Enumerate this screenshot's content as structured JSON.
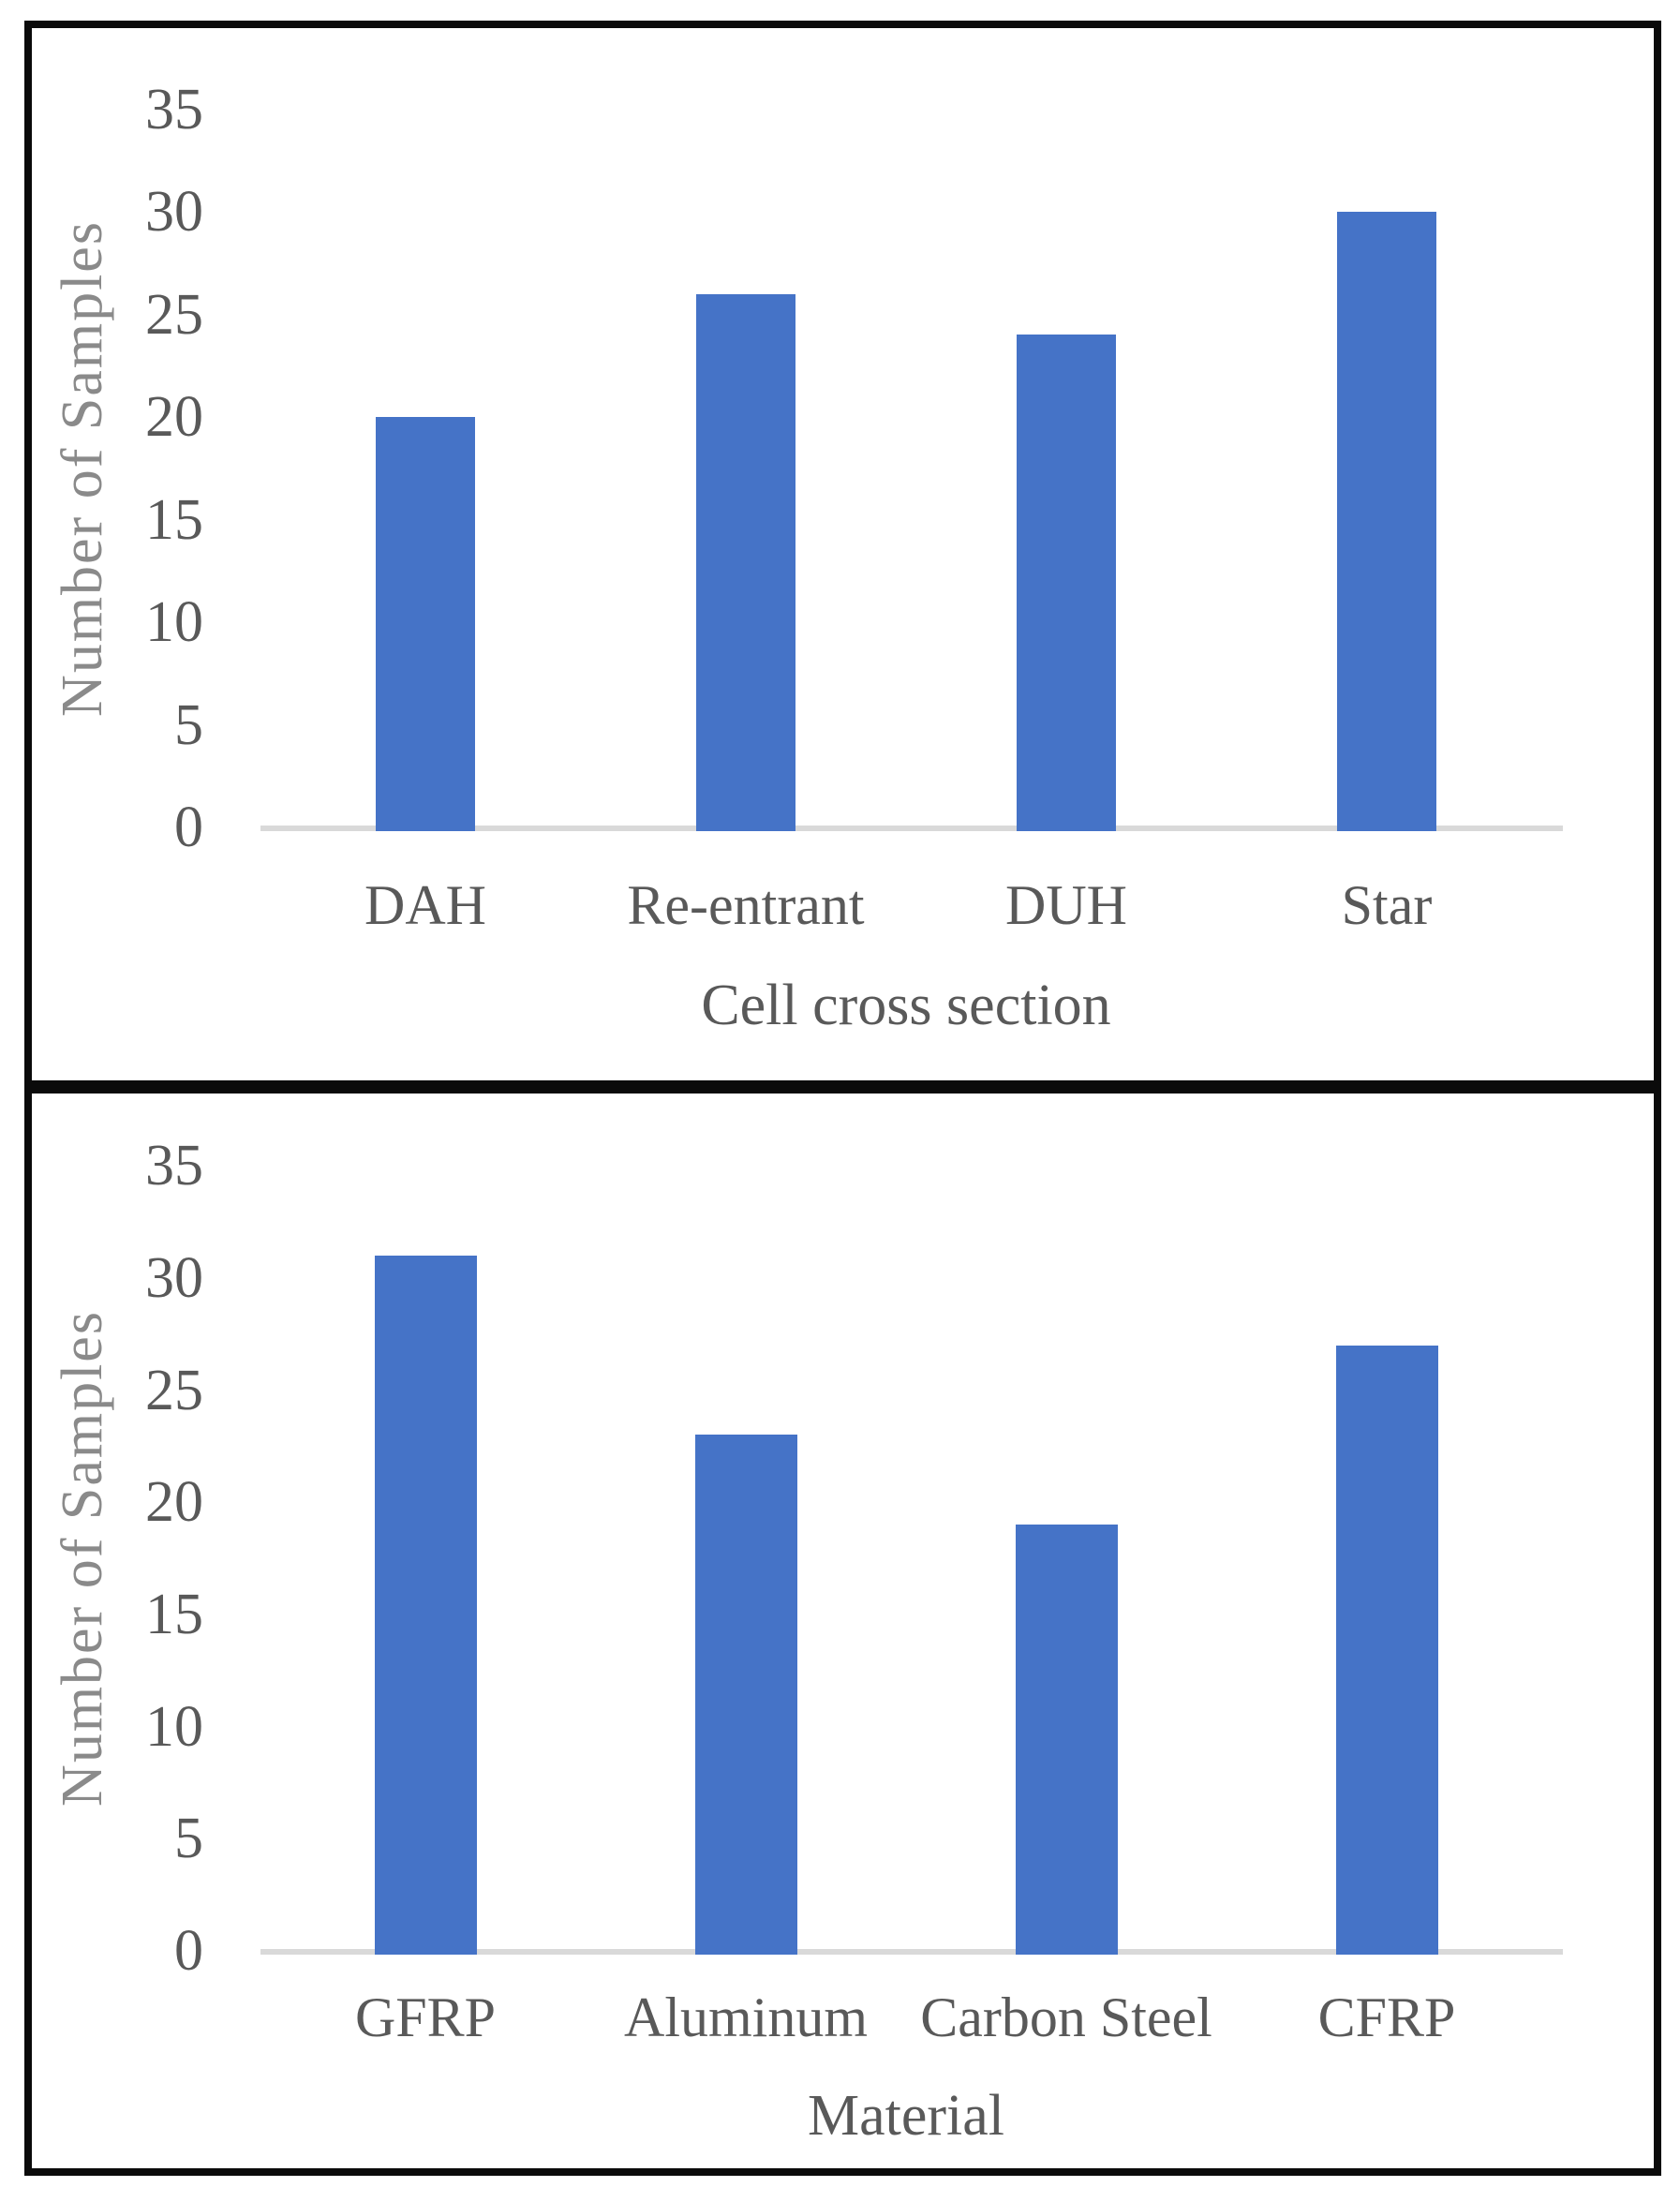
{
  "figure": {
    "panel_count": 2,
    "panels": [
      {
        "id": "cell-cross-section-chart"
      },
      {
        "id": "material-chart"
      }
    ]
  },
  "colors": {
    "bar": "#4573C7",
    "tick_label": "#595959",
    "category_label": "#595959",
    "axis_title": "#595959",
    "y_axis_title": "#8A8A8A",
    "axis_line": "#D9D9D9",
    "border": "#0B0B0B",
    "background": "#FFFFFF"
  },
  "chart_data": [
    {
      "type": "bar",
      "title": "",
      "categories": [
        "DAH",
        "Re-entrant",
        "DUH",
        "Star"
      ],
      "values": [
        20,
        26,
        24,
        30
      ],
      "xlabel": "Cell cross section",
      "ylabel": "Number of Samples",
      "ylim": [
        0,
        35
      ],
      "yticks": [
        0,
        5,
        10,
        15,
        20,
        25,
        30,
        35
      ],
      "grid": false,
      "legend": false
    },
    {
      "type": "bar",
      "title": "",
      "categories": [
        "GFRP",
        "Aluminum",
        "Carbon Steel",
        "CFRP"
      ],
      "values": [
        31,
        23,
        19,
        27
      ],
      "xlabel": "Material",
      "ylabel": "Number of Samples",
      "ylim": [
        0,
        35
      ],
      "yticks": [
        0,
        5,
        10,
        15,
        20,
        25,
        30,
        35
      ],
      "grid": false,
      "legend": false
    }
  ]
}
